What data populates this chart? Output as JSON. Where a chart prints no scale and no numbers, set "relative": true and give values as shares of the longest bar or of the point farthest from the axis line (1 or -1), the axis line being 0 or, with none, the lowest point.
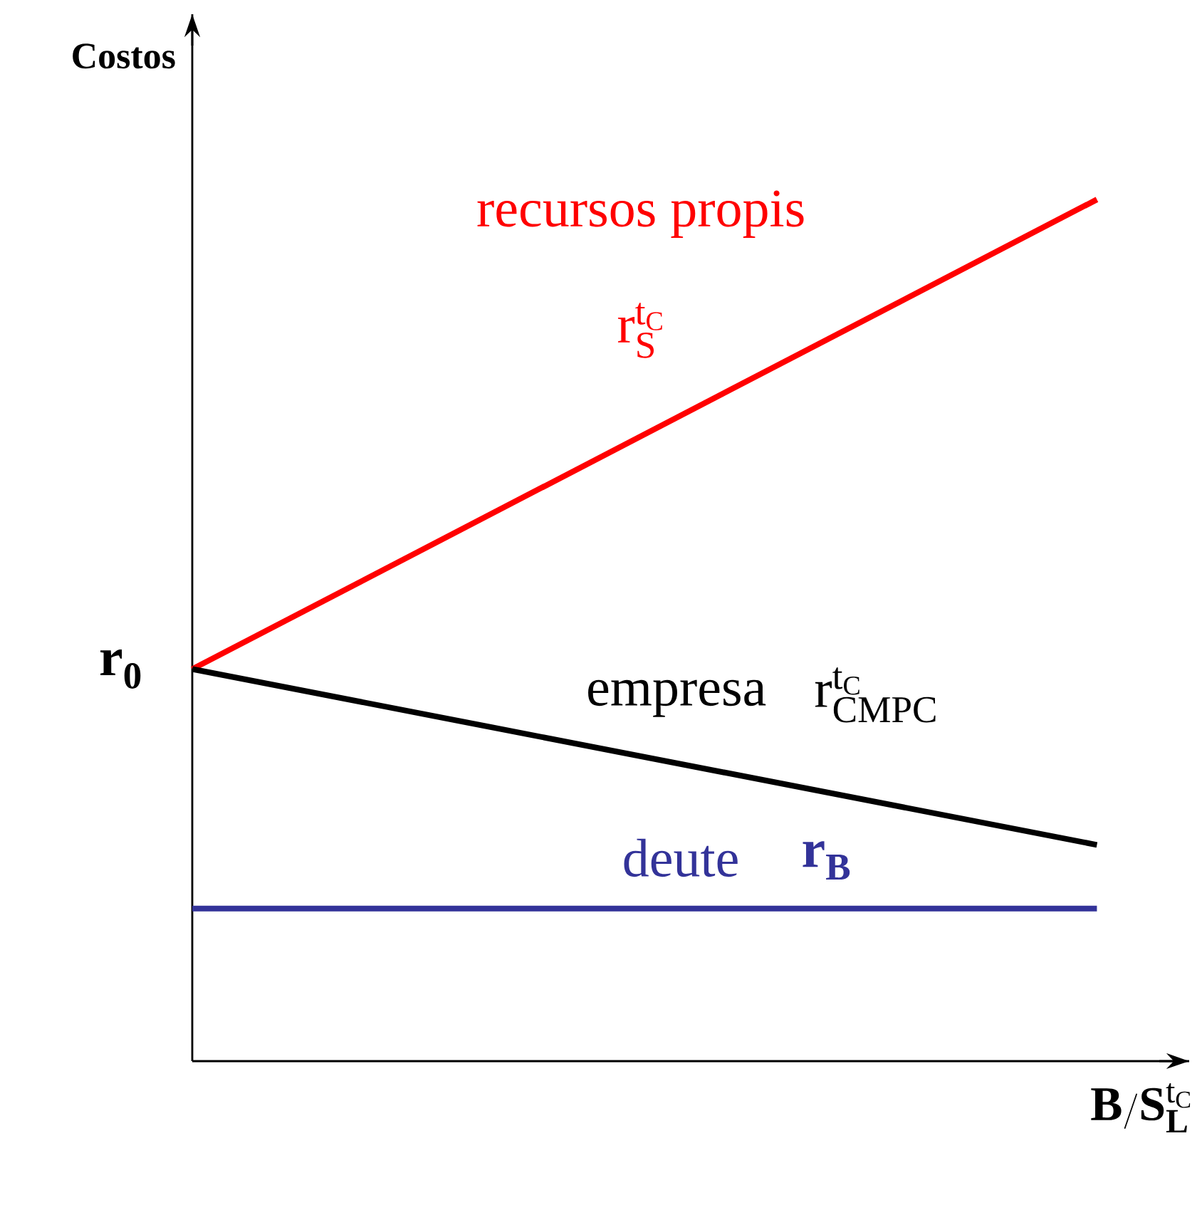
{
  "chart_data": {
    "type": "line",
    "relative": true,
    "ylabel": "Costos",
    "xlabel": "\\mathbf{B}/\\mathbf{S}_{\\mathbf{L}}^{\\mathrm{t}_{\\mathrm{C}}}",
    "categories": [
      null,
      null
    ],
    "series": [
      {
        "name": "recursos propis",
        "color": "#ff0000",
        "values": [
          0.455,
          1.0
        ]
      },
      {
        "name": "empresa",
        "color": "#000000",
        "values": [
          0.455,
          0.251
        ]
      },
      {
        "name": "deute",
        "color": "#333399",
        "values": [
          0.177,
          0.177
        ]
      }
    ],
    "annotations": [
      "\\mathrm{r}_{\\mathrm{S}}^{\\mathrm{t}_{\\mathrm{C}}}",
      "\\mathrm{r}_{\\mathrm{CMPC}}^{\\mathrm{t}_{\\mathrm{C}}}",
      "\\mathbf{r_{B}}",
      "\\mathbf{r_{0}}"
    ]
  }
}
